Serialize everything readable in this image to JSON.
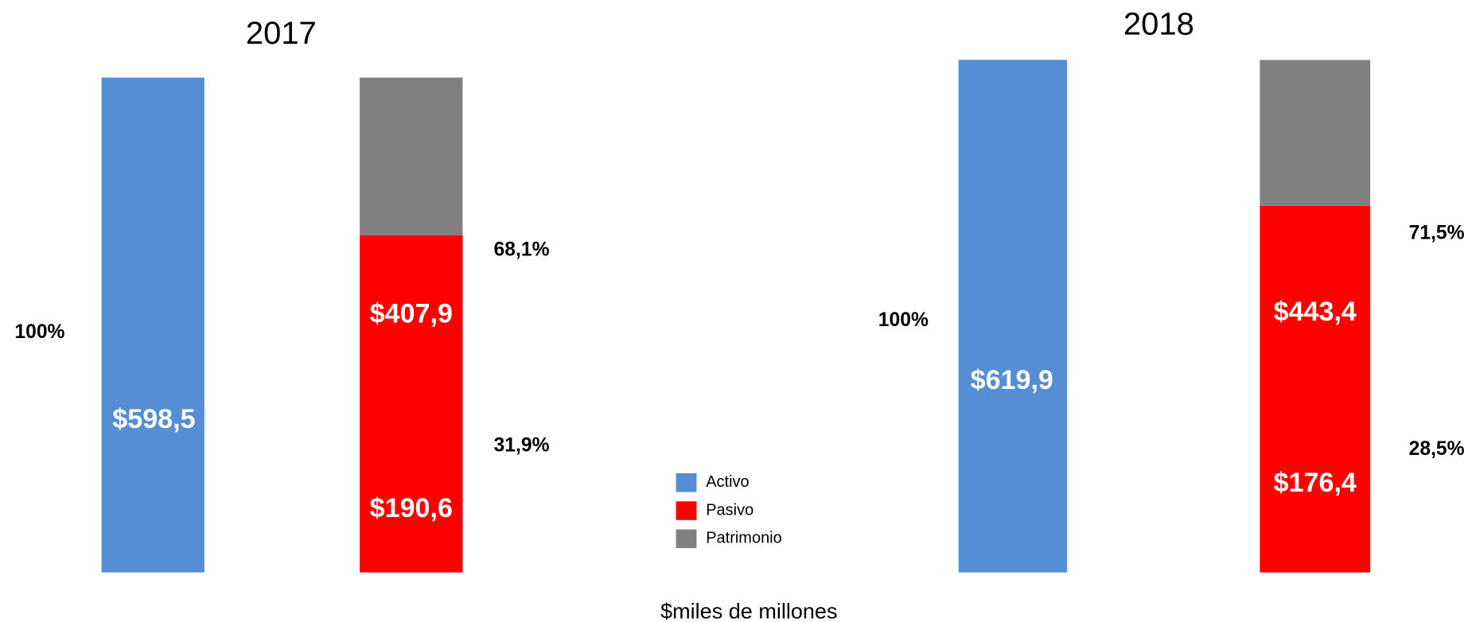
{
  "axis_label": "$miles de millones",
  "chart_data": [
    {
      "type": "bar",
      "stacked": true,
      "title": "2017",
      "categories": [
        null,
        null
      ],
      "series": [
        {
          "name": "Activo",
          "color": "#558ed5",
          "values": [
            598.5,
            null
          ],
          "value_labels": [
            "$598,5",
            null
          ],
          "share": 100,
          "share_label": "100%"
        },
        {
          "name": "Pasivo",
          "color": "#ff0000",
          "values": [
            null,
            407.9
          ],
          "value_labels": [
            null,
            "$407,9"
          ],
          "share": 68.1,
          "share_label": "68,1%"
        },
        {
          "name": "Patrimonio",
          "color": "#808080",
          "values": [
            null,
            190.6
          ],
          "value_labels": [
            null,
            "$190,6"
          ],
          "share": 31.9,
          "share_label": "31,9%"
        }
      ]
    },
    {
      "type": "bar",
      "stacked": true,
      "title": "2018",
      "categories": [
        null,
        null
      ],
      "series": [
        {
          "name": "Activo",
          "color": "#558ed5",
          "values": [
            619.9,
            null
          ],
          "value_labels": [
            "$619,9",
            null
          ],
          "share": 100,
          "share_label": "100%"
        },
        {
          "name": "Pasivo",
          "color": "#ff0000",
          "values": [
            null,
            443.4
          ],
          "value_labels": [
            null,
            "$443,4"
          ],
          "share": 71.5,
          "share_label": "71,5%"
        },
        {
          "name": "Patrimonio",
          "color": "#808080",
          "values": [
            null,
            176.4
          ],
          "value_labels": [
            null,
            "$176,4"
          ],
          "share": 28.5,
          "share_label": "28,5%"
        }
      ]
    }
  ]
}
